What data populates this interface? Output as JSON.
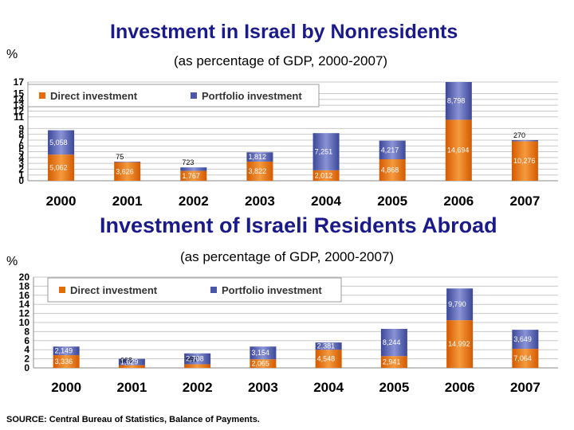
{
  "headings": {
    "chart1_title": "Investment in Israel by Nonresidents",
    "chart1_subtitle": "(as percentage of GDP, 2000-2007)",
    "chart1_unit": "%",
    "chart2_title": "Investment of Israeli Residents Abroad",
    "chart2_subtitle": "(as percentage of GDP, 2000-2007)",
    "chart2_unit": "%",
    "source": "SOURCE: Central Bureau of Statistics, Balance of Payments."
  },
  "colors": {
    "direct": "#e46c0a",
    "portfolio": "#4a56a8",
    "grid": "#c8c8c8",
    "title": "#1a1a8a"
  },
  "chart_data": [
    {
      "type": "bar",
      "stacked": true,
      "title": "Investment in Israel by Nonresidents",
      "subtitle": "(as percentage of GDP, 2000-2007)",
      "ylabel": "%",
      "categories": [
        "2000",
        "2001",
        "2002",
        "2003",
        "2004",
        "2005",
        "2006",
        "2007"
      ],
      "yticks": [
        0,
        1,
        2,
        3,
        4,
        5,
        6,
        7,
        8,
        9,
        11,
        12,
        13,
        14,
        15,
        17
      ],
      "ylim": [
        0,
        17
      ],
      "grid": true,
      "legend_position": "top",
      "series": [
        {
          "name": "Direct investment",
          "values": [
            4.5,
            3.2,
            1.7,
            3.3,
            1.8,
            3.7,
            10.5,
            6.8
          ],
          "labels": [
            "5,062",
            "3,626",
            "1,767",
            "3,822",
            "2,012",
            "4,868",
            "14,694",
            "10,276"
          ]
        },
        {
          "name": "Portfolio investment",
          "values": [
            4.2,
            0.1,
            0.6,
            1.6,
            6.4,
            3.2,
            6.5,
            0.2
          ],
          "labels": [
            "5,058",
            "75",
            "723",
            "1,812",
            "7,251",
            "4,217",
            "8,798",
            "270"
          ]
        }
      ]
    },
    {
      "type": "bar",
      "stacked": true,
      "title": "Investment of Israeli Residents Abroad",
      "subtitle": "(as percentage of GDP, 2000-2007)",
      "ylabel": "%",
      "categories": [
        "2000",
        "2001",
        "2002",
        "2003",
        "2004",
        "2005",
        "2006",
        "2007"
      ],
      "yticks": [
        0,
        2,
        4,
        6,
        8,
        10,
        12,
        14,
        16,
        18,
        20
      ],
      "ylim": [
        0,
        20
      ],
      "grid": true,
      "legend_position": "top",
      "series": [
        {
          "name": "Direct investment",
          "values": [
            2.8,
            0.6,
            0.8,
            1.9,
            4.0,
            2.6,
            10.5,
            4.2
          ],
          "labels": [
            "3,336",
            "668",
            "997",
            "2,065",
            "4,548",
            "2,941",
            "14,992",
            "7,064"
          ]
        },
        {
          "name": "Portfolio investment",
          "values": [
            1.9,
            1.4,
            2.4,
            2.8,
            1.6,
            6.0,
            7.0,
            4.2
          ],
          "labels": [
            "2,149",
            "1,629",
            "2,708",
            "3,154",
            "2,381",
            "8,244",
            "9,790",
            "3,649"
          ]
        }
      ]
    }
  ]
}
